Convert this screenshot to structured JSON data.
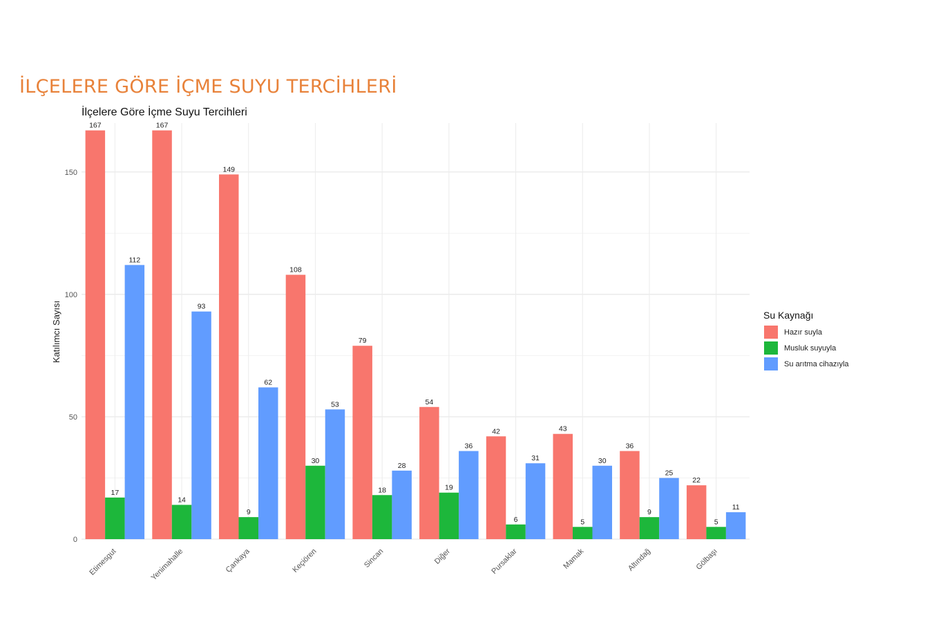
{
  "slide": {
    "title": "İLÇELERE GÖRE İÇME SUYU TERCİHLERİ"
  },
  "chart_data": {
    "type": "bar",
    "title": "İlçelere Göre İçme Suyu Tercihleri",
    "xlabel": "",
    "ylabel": "Katılımcı Sayısı",
    "ylim": [
      0,
      170
    ],
    "yticks": [
      0,
      50,
      100,
      150
    ],
    "grid": true,
    "legend_title": "Su Kaynağı",
    "legend_position": "right",
    "categories": [
      "Etimesgut",
      "Yenimahalle",
      "Çankaya",
      "Keçiören",
      "Sincan",
      "Diğer",
      "Pursaklar",
      "Mamak",
      "Altındağ",
      "Gölbaşı"
    ],
    "series": [
      {
        "name": "Hazır suyla",
        "color": "#F8766D",
        "values": [
          167,
          167,
          149,
          108,
          79,
          54,
          42,
          43,
          36,
          22
        ]
      },
      {
        "name": "Musluk suyuyla",
        "color": "#1DB73B",
        "values": [
          17,
          14,
          9,
          30,
          18,
          19,
          6,
          5,
          9,
          5
        ]
      },
      {
        "name": "Su arıtma cihazıyla",
        "color": "#619CFF",
        "values": [
          112,
          93,
          62,
          53,
          28,
          36,
          31,
          30,
          25,
          11
        ]
      }
    ]
  }
}
